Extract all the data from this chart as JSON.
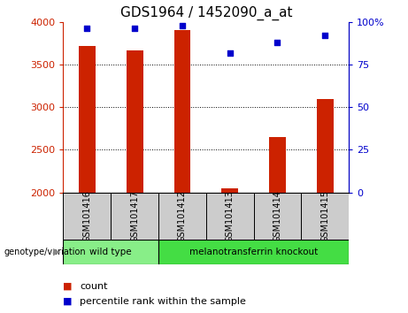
{
  "title": "GDS1964 / 1452090_a_at",
  "samples": [
    "GSM101416",
    "GSM101417",
    "GSM101412",
    "GSM101413",
    "GSM101414",
    "GSM101415"
  ],
  "counts": [
    3720,
    3670,
    3900,
    2050,
    2650,
    3100
  ],
  "percentile_ranks": [
    96,
    96,
    98,
    82,
    88,
    92
  ],
  "ylim_left": [
    2000,
    4000
  ],
  "ylim_right": [
    0,
    100
  ],
  "yticks_left": [
    2000,
    2500,
    3000,
    3500,
    4000
  ],
  "yticks_right": [
    0,
    25,
    50,
    75,
    100
  ],
  "bar_color": "#cc2200",
  "dot_color": "#0000cc",
  "groups": [
    {
      "label": "wild type",
      "indices": [
        0,
        1
      ],
      "color": "#88ee88"
    },
    {
      "label": "melanotransferrin knockout",
      "indices": [
        2,
        3,
        4,
        5
      ],
      "color": "#44dd44"
    }
  ],
  "sample_box_color": "#cccccc",
  "title_fontsize": 11,
  "tick_fontsize": 8,
  "legend_fontsize": 8,
  "background_color": "#ffffff"
}
